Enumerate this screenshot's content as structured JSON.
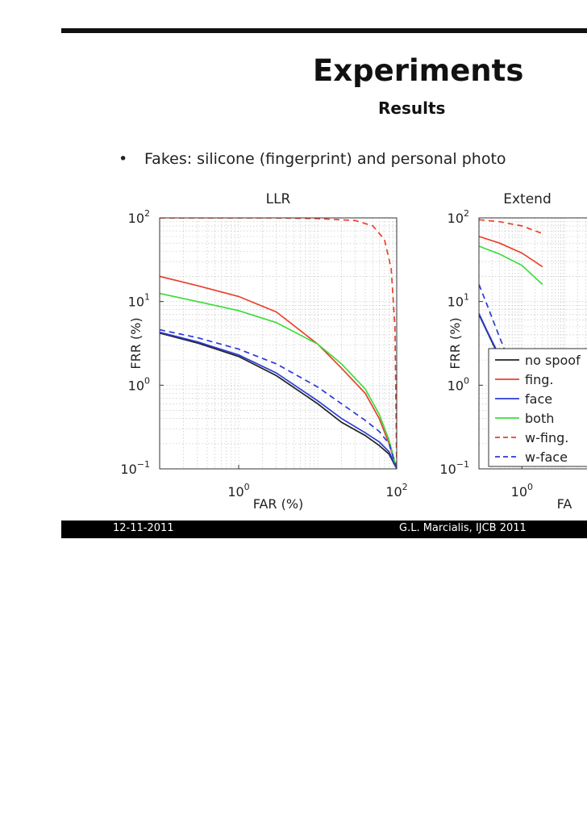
{
  "slide": {
    "title": "Experiments",
    "subtitle": "Results",
    "bullet_marker": "•",
    "bullet_text": "Fakes: silicone (fingerprint) and personal photo",
    "footer_date": "12-11-2011",
    "footer_author": "G.L. Marcialis, IJCB 2011"
  },
  "chart_data": [
    {
      "type": "line",
      "title": "LLR",
      "xlabel": "FAR (%)",
      "ylabel": "FRR (%)",
      "xscale": "log",
      "yscale": "log",
      "xlim": [
        0.1,
        100
      ],
      "ylim": [
        0.1,
        100
      ],
      "xticks": [
        {
          "value": 1,
          "base": "10",
          "exp": "0"
        },
        {
          "value": 100,
          "base": "10",
          "exp": "2"
        }
      ],
      "yticks": [
        {
          "value": 0.1,
          "base": "10",
          "exp": "−1"
        },
        {
          "value": 1,
          "base": "10",
          "exp": "0"
        },
        {
          "value": 10,
          "base": "10",
          "exp": "1"
        },
        {
          "value": 100,
          "base": "10",
          "exp": "2"
        }
      ],
      "grid": true,
      "series": [
        {
          "name": "no spoof",
          "color": "#222222",
          "dash": false,
          "x": [
            0.1,
            0.3,
            1,
            3,
            10,
            20,
            40,
            60,
            80,
            100
          ],
          "y": [
            4.2,
            3.2,
            2.2,
            1.3,
            0.6,
            0.36,
            0.25,
            0.19,
            0.15,
            0.1
          ]
        },
        {
          "name": "fing.",
          "color": "#e8412c",
          "dash": false,
          "x": [
            0.1,
            0.3,
            1,
            3,
            10,
            20,
            40,
            60,
            80,
            100
          ],
          "y": [
            20,
            15.5,
            11.5,
            7.5,
            3.1,
            1.6,
            0.8,
            0.4,
            0.2,
            0.1
          ]
        },
        {
          "name": "face",
          "color": "#2b3bd6",
          "dash": false,
          "x": [
            0.1,
            0.3,
            1,
            3,
            10,
            20,
            40,
            60,
            80,
            100
          ],
          "y": [
            4.3,
            3.3,
            2.3,
            1.4,
            0.65,
            0.4,
            0.27,
            0.21,
            0.16,
            0.1
          ]
        },
        {
          "name": "both",
          "color": "#3ddc3d",
          "dash": false,
          "x": [
            0.1,
            0.3,
            1,
            3,
            10,
            20,
            40,
            60,
            80,
            100
          ],
          "y": [
            12.5,
            10,
            7.8,
            5.6,
            3.1,
            1.8,
            0.9,
            0.45,
            0.22,
            0.1
          ]
        },
        {
          "name": "w-fing.",
          "color": "#e8412c",
          "dash": true,
          "x": [
            0.1,
            1,
            3,
            10,
            30,
            50,
            70,
            85,
            95,
            100
          ],
          "y": [
            100,
            100,
            100,
            98,
            93,
            80,
            55,
            25,
            5,
            0.1
          ]
        },
        {
          "name": "w-face",
          "color": "#2b3bd6",
          "dash": true,
          "x": [
            0.1,
            0.3,
            1,
            3,
            10,
            20,
            40,
            60,
            80,
            100
          ],
          "y": [
            4.6,
            3.7,
            2.7,
            1.8,
            0.95,
            0.6,
            0.38,
            0.28,
            0.2,
            0.1
          ]
        }
      ]
    },
    {
      "type": "line",
      "title": "Extend",
      "xlabel": "FA",
      "ylabel": "FRR (%)",
      "xscale": "log",
      "yscale": "log",
      "xlim": [
        0.1,
        100
      ],
      "ylim": [
        0.1,
        100
      ],
      "xticks": [
        {
          "value": 1,
          "base": "10",
          "exp": "0"
        }
      ],
      "yticks": [
        {
          "value": 0.1,
          "base": "10",
          "exp": "−1"
        },
        {
          "value": 1,
          "base": "10",
          "exp": "0"
        },
        {
          "value": 10,
          "base": "10",
          "exp": "1"
        },
        {
          "value": 100,
          "base": "10",
          "exp": "2"
        }
      ],
      "grid": true,
      "legend_position": "bottom-right",
      "series": [
        {
          "name": "no spoof",
          "color": "#222222",
          "dash": false,
          "x": [
            0.1,
            0.15,
            0.25,
            0.4,
            0.6,
            0.8
          ],
          "y": [
            7,
            4.5,
            2.6,
            1.6,
            1.1,
            0.9
          ]
        },
        {
          "name": "fing.",
          "color": "#e8412c",
          "dash": false,
          "x": [
            0.1,
            0.3,
            1,
            3
          ],
          "y": [
            60,
            50,
            38,
            26
          ]
        },
        {
          "name": "face",
          "color": "#2b3bd6",
          "dash": false,
          "x": [
            0.1,
            0.15,
            0.25,
            0.4,
            0.6,
            0.8
          ],
          "y": [
            7.2,
            4.6,
            2.7,
            1.7,
            1.15,
            0.95
          ]
        },
        {
          "name": "both",
          "color": "#3ddc3d",
          "dash": false,
          "x": [
            0.1,
            0.3,
            1,
            3
          ],
          "y": [
            46,
            37,
            27,
            16
          ]
        },
        {
          "name": "w-fing.",
          "color": "#e8412c",
          "dash": true,
          "x": [
            0.1,
            0.3,
            1,
            3
          ],
          "y": [
            95,
            90,
            80,
            65
          ]
        },
        {
          "name": "w-face",
          "color": "#2b3bd6",
          "dash": true,
          "x": [
            0.1,
            0.15,
            0.25,
            0.4,
            0.6,
            0.8
          ],
          "y": [
            16,
            9.5,
            4.8,
            2.6,
            1.6,
            1.2
          ]
        }
      ]
    }
  ]
}
